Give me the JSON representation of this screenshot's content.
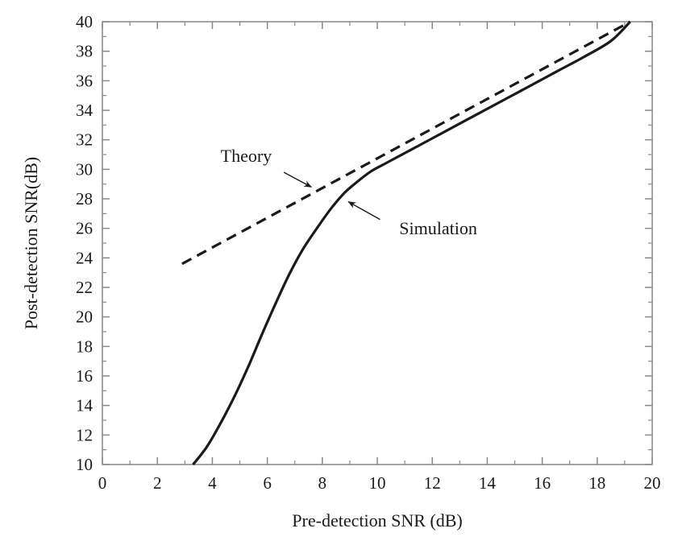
{
  "chart_data": {
    "type": "line",
    "xlabel": "Pre-detection SNR (dB)",
    "ylabel": "Post-detection SNR(dB)",
    "xlim": [
      0,
      20
    ],
    "ylim": [
      10,
      40
    ],
    "x_ticks": [
      0,
      2,
      4,
      6,
      8,
      10,
      12,
      14,
      16,
      18,
      20
    ],
    "y_ticks": [
      10,
      12,
      14,
      16,
      18,
      20,
      22,
      24,
      26,
      28,
      30,
      32,
      34,
      36,
      38,
      40
    ],
    "grid": false,
    "series": [
      {
        "name": "Theory",
        "style": "dashed",
        "color": "#1a1a1a",
        "x": [
          2.9,
          19.2
        ],
        "y": [
          23.6,
          40.0
        ]
      },
      {
        "name": "Simulation",
        "style": "solid",
        "color": "#1a1a1a",
        "x": [
          3.3,
          3.8,
          4.3,
          4.8,
          5.3,
          5.8,
          6.3,
          6.8,
          7.3,
          7.8,
          8.3,
          8.8,
          9.3,
          9.8,
          10.3,
          10.8,
          11.3,
          11.8,
          12.5,
          13.5,
          14.5,
          15.5,
          16.5,
          17.5,
          18.5,
          19.2
        ],
        "y": [
          10.0,
          11.2,
          12.8,
          14.6,
          16.6,
          18.8,
          20.9,
          22.9,
          24.6,
          26.0,
          27.3,
          28.4,
          29.2,
          29.9,
          30.4,
          30.9,
          31.4,
          31.9,
          32.6,
          33.6,
          34.6,
          35.6,
          36.6,
          37.6,
          38.7,
          40.0
        ]
      }
    ],
    "annotations": [
      {
        "text": "Theory",
        "series": "Theory",
        "text_at": [
          4.3,
          30.5
        ],
        "arrow_from": [
          6.6,
          29.8
        ],
        "arrow_to": [
          7.6,
          28.8
        ]
      },
      {
        "text": "Simulation",
        "series": "Simulation",
        "text_at": [
          10.8,
          25.6
        ],
        "arrow_from": [
          10.1,
          26.6
        ],
        "arrow_to": [
          8.95,
          27.8
        ]
      }
    ]
  }
}
